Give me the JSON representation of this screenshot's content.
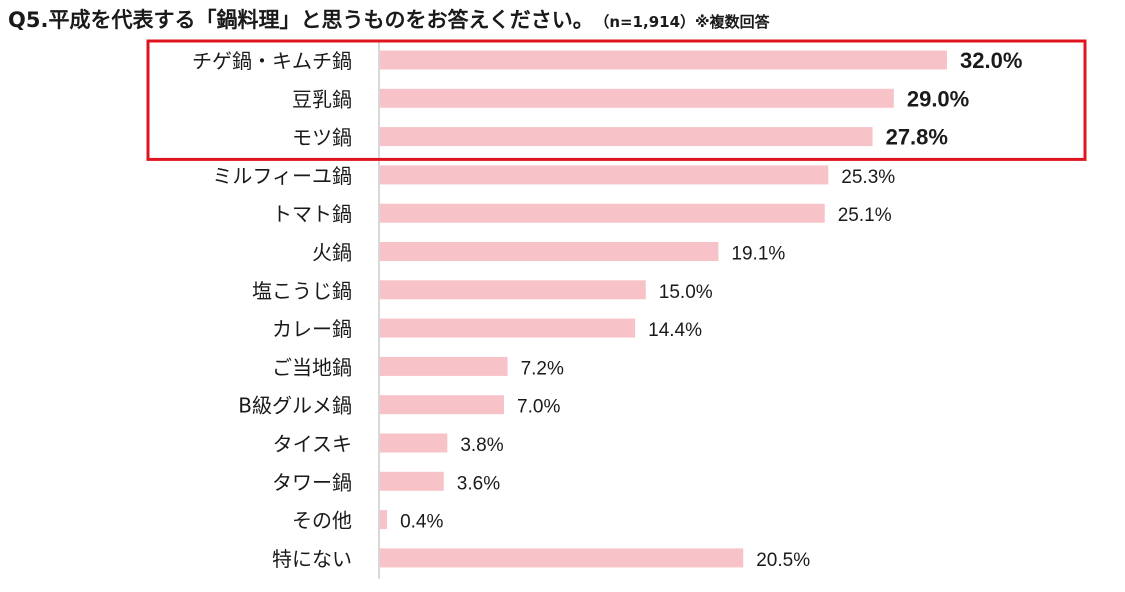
{
  "chart_data": {
    "type": "bar",
    "orientation": "horizontal",
    "title": "Q5.平成を代表する「鍋料理」と思うものをお答えください。",
    "subtitle": "（n=1,914）※複数回答",
    "categories": [
      "チゲ鍋・キムチ鍋",
      "豆乳鍋",
      "モツ鍋",
      "ミルフィーユ鍋",
      "トマト鍋",
      "火鍋",
      "塩こうじ鍋",
      "カレー鍋",
      "ご当地鍋",
      "B級グルメ鍋",
      "タイスキ",
      "タワー鍋",
      "その他",
      "特にない"
    ],
    "values": [
      32.0,
      29.0,
      27.8,
      25.3,
      25.1,
      19.1,
      15.0,
      14.4,
      7.2,
      7.0,
      3.8,
      3.6,
      0.4,
      20.5
    ],
    "value_labels": [
      "32.0%",
      "29.0%",
      "27.8%",
      "25.3%",
      "25.1%",
      "19.1%",
      "15.0%",
      "14.4%",
      "7.2%",
      "7.0%",
      "3.8%",
      "3.6%",
      "0.4%",
      "20.5%"
    ],
    "highlighted_top_n": 3,
    "xlim": [
      0,
      32
    ],
    "unit": "%",
    "grid": false,
    "legend": "none"
  },
  "colors": {
    "bar": "#f8c3c8",
    "highlight_box": "#e0141e",
    "axis": "#bfbfbf",
    "text": "#1a1a1a"
  }
}
